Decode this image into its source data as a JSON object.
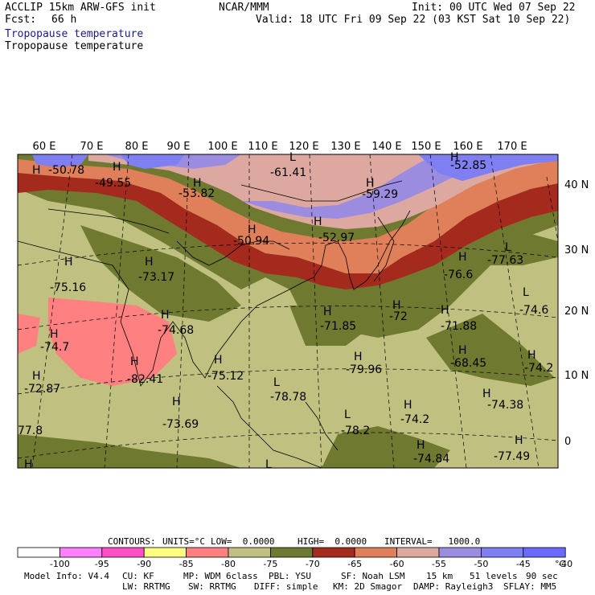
{
  "header": {
    "model": "ACCLIP 15km ARW-GFS init",
    "center": "NCAR/MMM",
    "init": "Init: 00 UTC Wed 07 Sep 22",
    "fcst_label": "Fcst:",
    "fcst_value": "66 h",
    "valid": "Valid: 18 UTC Fri 09 Sep 22 (03 KST Sat 10 Sep 22)",
    "field1": "Tropopause temperature",
    "field2": "Tropopause temperature"
  },
  "map": {
    "lon_labels": [
      "60 E",
      "70 E",
      "80 E",
      "90 E",
      "100 E",
      "110 E",
      "120 E",
      "130 E",
      "140 E",
      "150 E",
      "160 E",
      "170 E"
    ],
    "lat_labels": [
      "40 N",
      "30 N",
      "20 N",
      "10 N",
      "0"
    ],
    "colors": {
      "lt_100": "#ffffff",
      "m95": "#ff80ff",
      "m90": "#ff4fc8",
      "m85": "#ffff80",
      "m80": "#ff8080",
      "m75": "#c0c080",
      "m70": "#6f7a30",
      "m65": "#a32a1c",
      "m60": "#e0805a",
      "m55": "#dca8a0",
      "m50": "#9c8ce0",
      "m45": "#7f7ff2",
      "m40": "#6a6aff"
    },
    "highs_lows": [
      {
        "sym": "H",
        "value": "-50.78"
      },
      {
        "sym": "H",
        "value": "-49.55"
      },
      {
        "sym": "H",
        "value": "-53.82"
      },
      {
        "sym": "L",
        "value": "-61.41"
      },
      {
        "sym": "H",
        "value": "-59.29"
      },
      {
        "sym": "H",
        "value": "-52.85"
      },
      {
        "sym": "H",
        "value": "-50.94"
      },
      {
        "sym": "H",
        "value": "-52.97"
      },
      {
        "sym": "L",
        "value": "-77.63"
      },
      {
        "sym": "H",
        "value": "-75.16"
      },
      {
        "sym": "H",
        "value": "-73.17"
      },
      {
        "sym": "H",
        "value": "-76.6"
      },
      {
        "sym": "L",
        "value": "-74.6"
      },
      {
        "sym": "H",
        "value": "-74.68"
      },
      {
        "sym": "H",
        "value": "-71.85"
      },
      {
        "sym": "H",
        "value": "-72"
      },
      {
        "sym": "H",
        "value": "-71.88"
      },
      {
        "sym": "H",
        "value": "-74.7"
      },
      {
        "sym": "H",
        "value": "-79.96"
      },
      {
        "sym": "H",
        "value": "-68.45"
      },
      {
        "sym": "H",
        "value": "-74.2"
      },
      {
        "sym": "H",
        "value": "-82.41"
      },
      {
        "sym": "H",
        "value": "-75.12"
      },
      {
        "sym": "H",
        "value": "-72.87"
      },
      {
        "sym": "L",
        "value": "-78.78"
      },
      {
        "sym": "H",
        "value": "-74.38"
      },
      {
        "sym": "H",
        "value": "-73.69"
      },
      {
        "sym": "H",
        "value": "-74.2"
      },
      {
        "sym": "L",
        "value": "-78.2"
      },
      {
        "sym": "",
        "value": "77.8"
      },
      {
        "sym": "H",
        "value": "-74.84"
      },
      {
        "sym": "H",
        "value": "-77.49"
      },
      {
        "sym": "H",
        "value": ""
      },
      {
        "sym": "L",
        "value": ""
      }
    ]
  },
  "contours_info": {
    "contours": "CONTOURS:",
    "units": "UNITS=°C",
    "low": "LOW=  0.0000",
    "high": "HIGH=  0.0000",
    "interval": "INTERVAL=   1000.0"
  },
  "colorbar": {
    "labels": [
      "-100",
      "-95",
      "-90",
      "-85",
      "-80",
      "-75",
      "-70",
      "-65",
      "-60",
      "-55",
      "-50",
      "-45",
      "-40"
    ],
    "unit": "°C"
  },
  "footer": {
    "line1": [
      "Model Info: V4.4",
      "CU: KF",
      "MP: WDM 6class",
      "PBL: YSU",
      "SF: Noah LSM",
      "15 km",
      "51 levels",
      "90 sec"
    ],
    "line2": [
      "LW: RRTMG",
      "SW: RRTMG",
      "DIFF: simple",
      "KM: 2D Smagor",
      "DAMP: Rayleigh3",
      "SFLAY: MM5"
    ]
  }
}
